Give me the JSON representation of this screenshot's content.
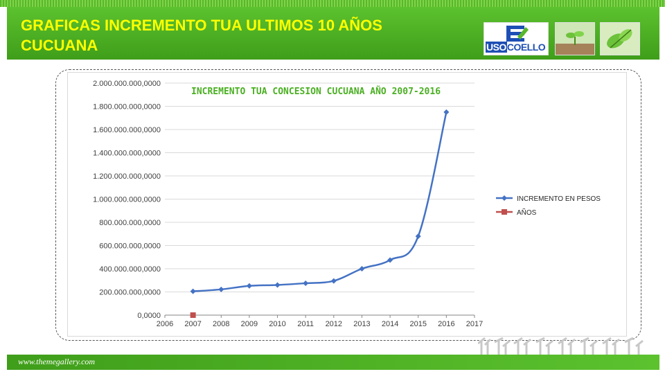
{
  "slide": {
    "title_line1": "GRAFICAS INCREMENTO TUA  ULTIMOS 10 AÑOS",
    "title_line2": "CUCUANA",
    "footer_url": "www.themegallery.com",
    "logo_uso": "USO",
    "logo_coello": "COELLO",
    "colors": {
      "title": "#ffff00",
      "bar_green": "#4aaf22",
      "accent_blue": "#1e4fb4"
    },
    "icons": [
      "usocoello-logo",
      "sprout-icon",
      "leaf-icon",
      "plant-row-decoration-icon"
    ]
  },
  "chart_data": {
    "type": "line",
    "title": "INCREMENTO TUA CONCESION CUCUANA AÑO 2007-2016",
    "xlim": [
      2006,
      2017
    ],
    "x_ticks": [
      "2006",
      "2007",
      "2008",
      "2009",
      "2010",
      "2011",
      "2012",
      "2013",
      "2014",
      "2015",
      "2016",
      "2017"
    ],
    "ylim": [
      0,
      2000000000
    ],
    "y_ticks": [
      "0,0000",
      "200.000.000,0000",
      "400.000.000,0000",
      "600.000.000,0000",
      "800.000.000,0000",
      "1.000.000.000,0000",
      "1.200.000.000,0000",
      "1.400.000.000,0000",
      "1.600.000.000,0000",
      "1.800.000.000,0000",
      "2.000.000.000,0000"
    ],
    "grid": true,
    "legend_position": "right",
    "series": [
      {
        "name": "INCREMENTO EN PESOS",
        "color": "#4472c4",
        "marker": "diamond",
        "x": [
          2007,
          2008,
          2009,
          2010,
          2011,
          2012,
          2013,
          2014,
          2015,
          2016
        ],
        "values": [
          205000000,
          222000000,
          252000000,
          260000000,
          275000000,
          295000000,
          400000000,
          475000000,
          680000000,
          1750000000
        ]
      },
      {
        "name": "AÑOS",
        "color": "#c0504d",
        "marker": "square",
        "x": [
          2007
        ],
        "values": [
          0
        ]
      }
    ]
  }
}
